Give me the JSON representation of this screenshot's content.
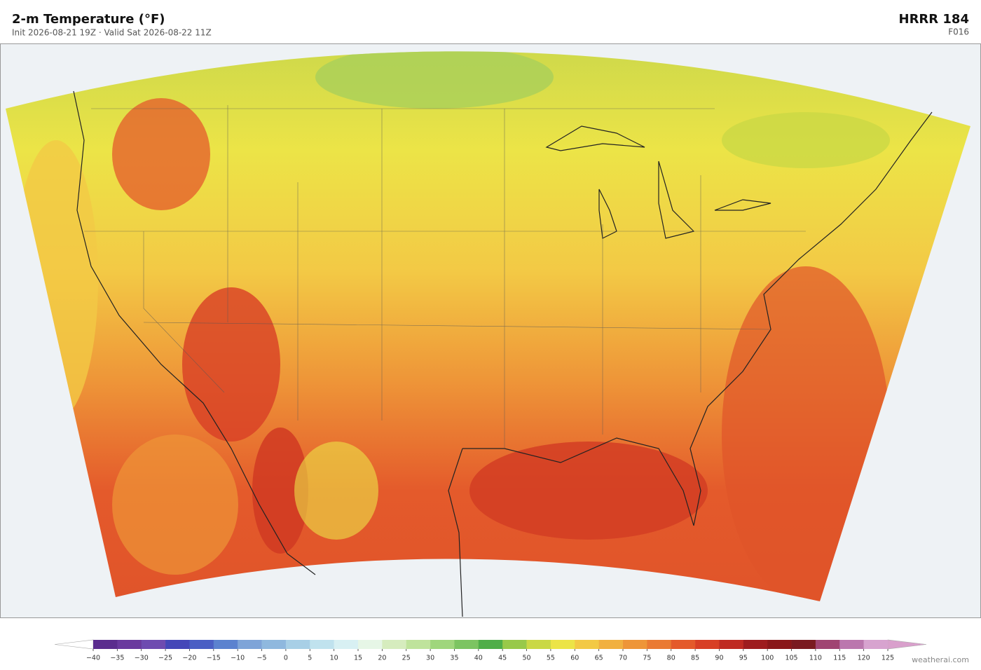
{
  "header": {
    "title": "2-m Temperature  (°F)",
    "subtitle": "Init 2026-08-21 19Z  ·  Valid Sat 2026-08-22 11Z",
    "model": "HRRR  184",
    "forecast_hour": "F016"
  },
  "colorbar": {
    "ticks": [
      {
        "value": -40,
        "label": "−40"
      },
      {
        "value": -35,
        "label": "−35"
      },
      {
        "value": -30,
        "label": "−30"
      },
      {
        "value": -25,
        "label": "−25"
      },
      {
        "value": -20,
        "label": "−20"
      },
      {
        "value": -15,
        "label": "−15"
      },
      {
        "value": -10,
        "label": "−10"
      },
      {
        "value": -5,
        "label": "−5"
      },
      0,
      5,
      10,
      15,
      20,
      25,
      30,
      35,
      40,
      45,
      50,
      55,
      60,
      65,
      70,
      75,
      80,
      85,
      90,
      95,
      100,
      105,
      110,
      115,
      120,
      125
    ],
    "colors": [
      "#5b2d8e",
      "#6a3a9e",
      "#6e4bb0",
      "#4447b8",
      "#4a5fc4",
      "#5b82cf",
      "#7ea4d8",
      "#8fb8de",
      "#a8cfe6",
      "#c0e2ee",
      "#d8f0f3",
      "#e6f6e6",
      "#d6ecbe",
      "#bfe39c",
      "#9fd67c",
      "#7cc462",
      "#4fae48",
      "#98c94a",
      "#cad845",
      "#ece447",
      "#f3c945",
      "#f1b040",
      "#ee9538",
      "#ea7a33",
      "#e45a2b",
      "#d83f25",
      "#bf2a22",
      "#9e1c1e",
      "#8a1719",
      "#7a1a20",
      "#a04472",
      "#bb77ae",
      "#d7a3cf"
    ],
    "under_color": "#ffffff",
    "over_color": "#d9a0cc"
  },
  "footer": {
    "credit": "weatherai.com"
  }
}
